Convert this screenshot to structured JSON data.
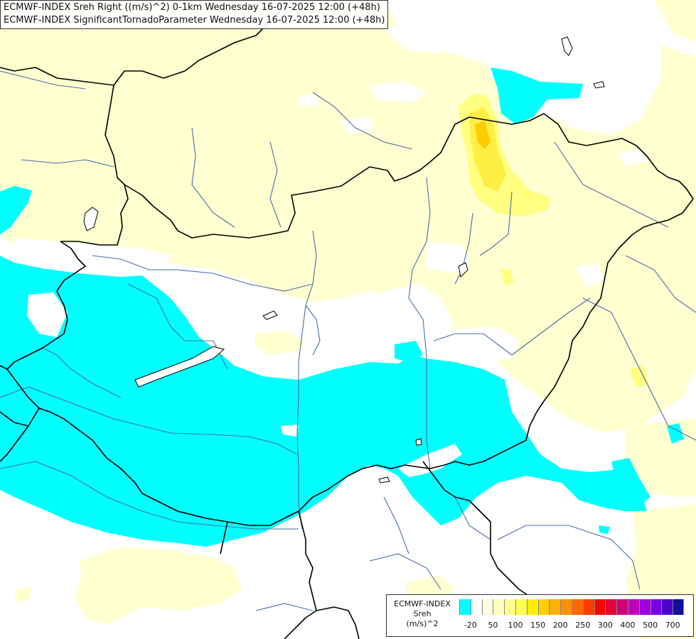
{
  "title_lines": [
    "ECMWF-INDEX Sreh Right ((m/s)^2) 0-1km Wednesday 16-07-2025 12:00 (+48h)",
    "ECMWF-INDEX SignificantTornadoParameter Wednesday 16-07-2025 12:00 (+48h)"
  ],
  "legend": {
    "title_lines": [
      "ECMWF-INDEX",
      "Sreh",
      "(m/s)^2"
    ],
    "tick_labels": [
      "-20",
      "50",
      "100",
      "150",
      "200",
      "250",
      "300",
      "400",
      "500",
      "700"
    ],
    "colors": [
      "#00ffff",
      "#ffffff",
      "#ffffe0",
      "#ffffc0",
      "#ffff90",
      "#ffff50",
      "#ffee00",
      "#ffd000",
      "#ffb000",
      "#ff9000",
      "#ff6a00",
      "#ff3c00",
      "#ff0000",
      "#e8003a",
      "#d0007a",
      "#c000b8",
      "#a000e0",
      "#7800e8",
      "#4a00c8",
      "#10109a"
    ]
  },
  "map_colors": {
    "background": "#ffffff",
    "cyan": "#00ffff",
    "pale_yellow": "#ffffd0",
    "yellow": "#ffff80",
    "bright_yellow": "#ffee44",
    "border": "#000000",
    "river": "#4a6ea9"
  }
}
